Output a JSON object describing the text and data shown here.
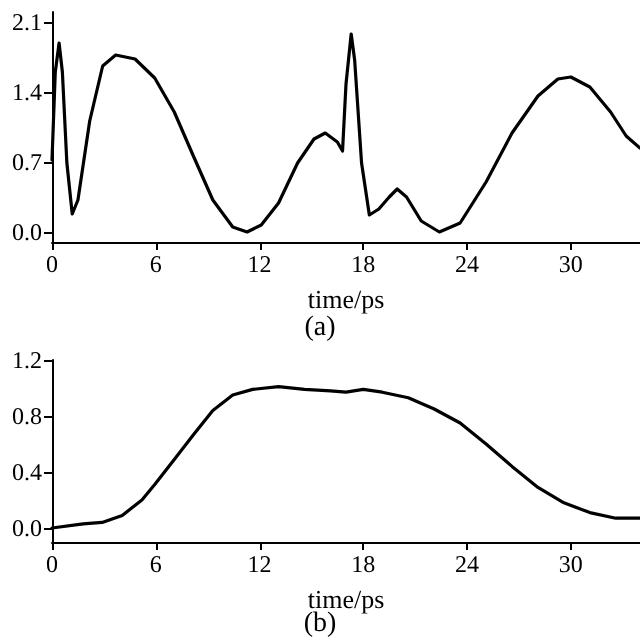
{
  "chart_data": [
    {
      "type": "line",
      "xlabel": "time/ps",
      "annotations": [
        "(a)"
      ],
      "color": "#000000",
      "xlim": [
        0,
        34
      ],
      "xticks": [
        0,
        6,
        12,
        18,
        24,
        30
      ],
      "ylim": [
        -0.1,
        2.2
      ],
      "yticks": [
        {
          "value": 0,
          "label": "0.0"
        },
        0.7,
        1.4,
        2.1
      ],
      "grid": false,
      "marker": "none",
      "line_style": "solid",
      "x": [
        0,
        0.19,
        0.41,
        0.6,
        0.86,
        1.17,
        1.5,
        2.18,
        2.93,
        3.68,
        4.8,
        5.94,
        7.07,
        8.2,
        9.3,
        10.45,
        11.28,
        12.1,
        13.1,
        14.2,
        15.15,
        15.8,
        16.5,
        16.8,
        17.0,
        17.3,
        17.5,
        17.9,
        18.35,
        18.9,
        19.5,
        19.96,
        20.5,
        21.35,
        22.4,
        23.6,
        25.1,
        26.6,
        28.1,
        29.25,
        30.0,
        31.1,
        32.3,
        33.2,
        34
      ],
      "values": [
        0.72,
        1.6,
        1.89,
        1.6,
        0.69,
        0.18,
        0.32,
        1.11,
        1.66,
        1.77,
        1.73,
        1.54,
        1.2,
        0.75,
        0.32,
        0.05,
        0.0,
        0.07,
        0.29,
        0.69,
        0.93,
        0.99,
        0.9,
        0.81,
        1.48,
        1.98,
        1.72,
        0.69,
        0.17,
        0.23,
        0.35,
        0.43,
        0.35,
        0.11,
        0.0,
        0.09,
        0.5,
        0.99,
        1.36,
        1.53,
        1.55,
        1.45,
        1.2,
        0.96,
        0.84
      ]
    },
    {
      "type": "line",
      "xlabel": "time/ps",
      "annotations": [
        "(b)"
      ],
      "color": "#000000",
      "xlim": [
        0,
        34
      ],
      "xticks": [
        0,
        6,
        12,
        18,
        24,
        30
      ],
      "ylim": [
        -0.1,
        1.2
      ],
      "yticks": [
        {
          "value": 0,
          "label": "0.0"
        },
        0.4,
        0.8,
        1.2
      ],
      "grid": false,
      "marker": "none",
      "line_style": "solid",
      "x": [
        0,
        1.8,
        2.9,
        4.06,
        5.2,
        5.94,
        7.07,
        8.2,
        9.3,
        10.45,
        11.6,
        13.1,
        14.6,
        16.1,
        17.0,
        18.0,
        19.1,
        20.6,
        22.1,
        23.6,
        25.1,
        26.6,
        28.1,
        29.6,
        31.1,
        32.6,
        34
      ],
      "values": [
        0,
        0.03,
        0.04,
        0.09,
        0.2,
        0.31,
        0.49,
        0.67,
        0.84,
        0.95,
        0.99,
        1.01,
        0.99,
        0.98,
        0.97,
        0.99,
        0.97,
        0.93,
        0.85,
        0.75,
        0.6,
        0.44,
        0.29,
        0.18,
        0.11,
        0.07,
        0.07
      ]
    }
  ]
}
